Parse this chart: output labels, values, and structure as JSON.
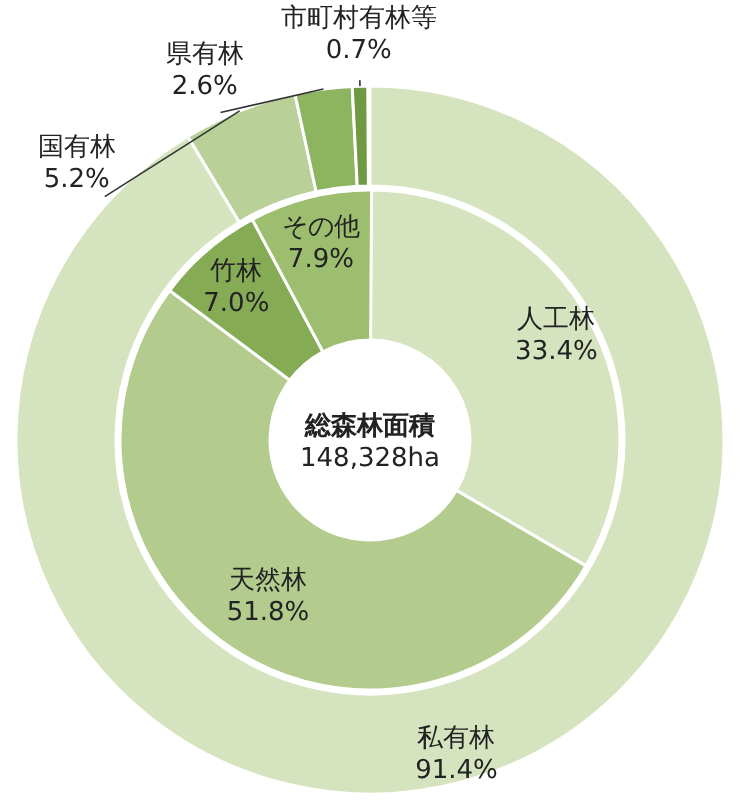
{
  "chart_data": [
    {
      "type": "donut",
      "categories": [
        "私有林",
        "国有林",
        "県有林",
        "市町村有林等"
      ],
      "values": [
        91.4,
        5.2,
        2.6,
        0.7
      ],
      "colors": [
        "#d5e3bf",
        "#b9d199",
        "#8db45f",
        "#6f9a42"
      ],
      "value_labels": [
        "91.4%",
        "5.2%",
        "2.6%",
        "0.7%"
      ]
    },
    {
      "type": "donut",
      "title": "総森林面積",
      "subtitle": "148,328ha",
      "categories": [
        "人工林",
        "天然林",
        "竹林",
        "その他"
      ],
      "values": [
        33.4,
        51.8,
        7.0,
        7.9
      ],
      "colors": [
        "#d5e3bf",
        "#b3cc8e",
        "#86ab55",
        "#9cbe6e"
      ],
      "value_labels": [
        "33.4%",
        "51.8%",
        "7.0%",
        "7.9%"
      ]
    }
  ]
}
